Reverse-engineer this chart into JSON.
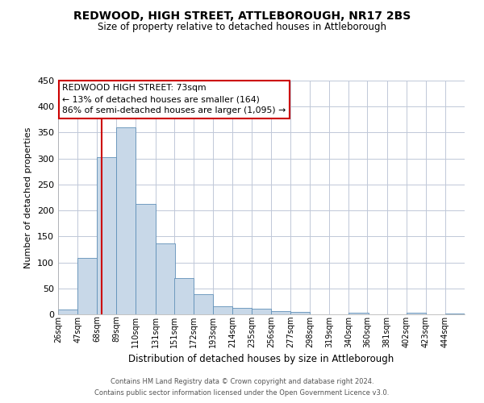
{
  "title": "REDWOOD, HIGH STREET, ATTLEBOROUGH, NR17 2BS",
  "subtitle": "Size of property relative to detached houses in Attleborough",
  "xlabel": "Distribution of detached houses by size in Attleborough",
  "ylabel": "Number of detached properties",
  "footnote1": "Contains HM Land Registry data © Crown copyright and database right 2024.",
  "footnote2": "Contains public sector information licensed under the Open Government Licence v3.0.",
  "bin_labels": [
    "26sqm",
    "47sqm",
    "68sqm",
    "89sqm",
    "110sqm",
    "131sqm",
    "151sqm",
    "172sqm",
    "193sqm",
    "214sqm",
    "235sqm",
    "256sqm",
    "277sqm",
    "298sqm",
    "319sqm",
    "340sqm",
    "360sqm",
    "381sqm",
    "402sqm",
    "423sqm",
    "444sqm"
  ],
  "bar_heights": [
    9,
    108,
    302,
    360,
    213,
    136,
    70,
    39,
    16,
    13,
    11,
    6,
    4,
    0,
    0,
    3,
    0,
    0,
    3,
    0,
    2
  ],
  "bar_color": "#c8d8e8",
  "bar_edge_color": "#6090b8",
  "ylim": [
    0,
    450
  ],
  "yticks": [
    0,
    50,
    100,
    150,
    200,
    250,
    300,
    350,
    400,
    450
  ],
  "property_line_x": 73,
  "bin_edges_values": [
    26,
    47,
    68,
    89,
    110,
    131,
    151,
    172,
    193,
    214,
    235,
    256,
    277,
    298,
    319,
    340,
    360,
    381,
    402,
    423,
    444
  ],
  "annotation_title": "REDWOOD HIGH STREET: 73sqm",
  "annotation_line1": "← 13% of detached houses are smaller (164)",
  "annotation_line2": "86% of semi-detached houses are larger (1,095) →",
  "annotation_box_color": "#ffffff",
  "annotation_box_edge": "#cc0000",
  "red_line_color": "#cc0000",
  "background_color": "#ffffff",
  "grid_color": "#c0c8d8"
}
